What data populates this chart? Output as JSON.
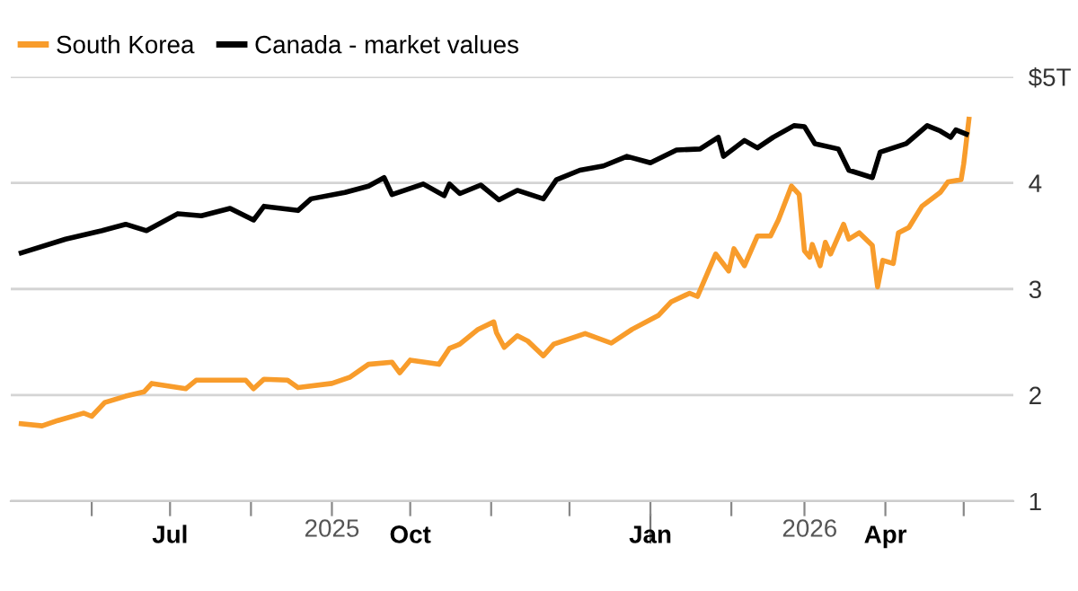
{
  "chart_data": {
    "type": "line",
    "series": [
      {
        "name": "South Korea",
        "color": "#f89c2b",
        "x": [
          "2025-05-05",
          "2025-05-13",
          "2025-05-19",
          "2025-05-29",
          "2025-06-01",
          "2025-06-06",
          "2025-06-14",
          "2025-06-21",
          "2025-06-24",
          "2025-07-07",
          "2025-07-11",
          "2025-07-30",
          "2025-08-02",
          "2025-08-06",
          "2025-08-15",
          "2025-08-19",
          "2025-09-01",
          "2025-09-08",
          "2025-09-15",
          "2025-09-24",
          "2025-09-27",
          "2025-10-01",
          "2025-10-12",
          "2025-10-16",
          "2025-10-20",
          "2025-10-27",
          "2025-11-02",
          "2025-11-03",
          "2025-11-06",
          "2025-11-11",
          "2025-11-15",
          "2025-11-21",
          "2025-11-25",
          "2025-12-07",
          "2025-12-17",
          "2025-12-25",
          "2026-01-04",
          "2026-01-09",
          "2026-01-16",
          "2026-01-19",
          "2026-01-26",
          "2026-01-31",
          "2026-02-02",
          "2026-02-06",
          "2026-02-11",
          "2026-02-16",
          "2026-02-19",
          "2026-02-24",
          "2026-02-27",
          "2026-03-01",
          "2026-03-03",
          "2026-03-04",
          "2026-03-07",
          "2026-03-09",
          "2026-03-11",
          "2026-03-16",
          "2026-03-18",
          "2026-03-22",
          "2026-03-27",
          "2026-03-29",
          "2026-03-31",
          "2026-04-04",
          "2026-04-06",
          "2026-04-10",
          "2026-04-15",
          "2026-04-22",
          "2026-04-25",
          "2026-04-30",
          "2026-05-01",
          "2026-05-03"
        ],
        "values": [
          1.73,
          1.71,
          1.76,
          1.83,
          1.8,
          1.93,
          1.99,
          2.03,
          2.11,
          2.06,
          2.14,
          2.14,
          2.06,
          2.15,
          2.14,
          2.07,
          2.11,
          2.17,
          2.29,
          2.31,
          2.21,
          2.33,
          2.29,
          2.44,
          2.48,
          2.62,
          2.69,
          2.59,
          2.45,
          2.56,
          2.51,
          2.37,
          2.48,
          2.58,
          2.49,
          2.62,
          2.75,
          2.88,
          2.96,
          2.93,
          3.33,
          3.17,
          3.38,
          3.22,
          3.5,
          3.5,
          3.65,
          3.97,
          3.89,
          3.36,
          3.3,
          3.42,
          3.22,
          3.44,
          3.33,
          3.61,
          3.47,
          3.53,
          3.41,
          3.02,
          3.27,
          3.24,
          3.53,
          3.58,
          3.78,
          3.91,
          4.01,
          4.03,
          4.18,
          4.6
        ]
      },
      {
        "name": "Canada - market values",
        "color": "#000000",
        "x": [
          "2025-05-05",
          "2025-05-22",
          "2025-06-05",
          "2025-06-14",
          "2025-06-22",
          "2025-07-04",
          "2025-07-13",
          "2025-07-24",
          "2025-08-02",
          "2025-08-06",
          "2025-08-19",
          "2025-08-24",
          "2025-09-06",
          "2025-09-15",
          "2025-09-21",
          "2025-09-24",
          "2025-10-06",
          "2025-10-14",
          "2025-10-16",
          "2025-10-20",
          "2025-10-28",
          "2025-11-04",
          "2025-11-11",
          "2025-11-21",
          "2025-11-26",
          "2025-12-05",
          "2025-12-14",
          "2025-12-23",
          "2026-01-01",
          "2026-01-11",
          "2026-01-20",
          "2026-01-27",
          "2026-01-29",
          "2026-02-06",
          "2026-02-11",
          "2026-02-17",
          "2026-02-25",
          "2026-03-01",
          "2026-03-05",
          "2026-03-14",
          "2026-03-18",
          "2026-03-27",
          "2026-03-30",
          "2026-04-09",
          "2026-04-17",
          "2026-04-22",
          "2026-04-26",
          "2026-04-28",
          "2026-05-02"
        ],
        "values": [
          3.34,
          3.47,
          3.55,
          3.61,
          3.55,
          3.71,
          3.69,
          3.76,
          3.65,
          3.78,
          3.74,
          3.85,
          3.91,
          3.97,
          4.05,
          3.89,
          3.99,
          3.88,
          3.99,
          3.9,
          3.98,
          3.84,
          3.93,
          3.85,
          4.03,
          4.12,
          4.16,
          4.25,
          4.19,
          4.31,
          4.32,
          4.43,
          4.25,
          4.4,
          4.33,
          4.43,
          4.54,
          4.53,
          4.37,
          4.32,
          4.12,
          4.05,
          4.29,
          4.37,
          4.54,
          4.49,
          4.43,
          4.5,
          4.46
        ]
      }
    ],
    "xlim": [
      "2025-05-01",
      "2026-05-20"
    ],
    "xticks": [
      {
        "value": "2025-06-01",
        "label": null
      },
      {
        "value": "2025-07-01",
        "label": "Jul"
      },
      {
        "value": "2025-08-01",
        "label": null
      },
      {
        "value": "2025-09-01",
        "label": null
      },
      {
        "value": "2025-10-01",
        "label": "Oct"
      },
      {
        "value": "2025-11-01",
        "label": null
      },
      {
        "value": "2025-12-01",
        "label": null
      },
      {
        "value": "2026-01-01",
        "label": "Jan"
      },
      {
        "value": "2026-02-01",
        "label": null
      },
      {
        "value": "2026-03-01",
        "label": null
      },
      {
        "value": "2026-04-01",
        "label": "Apr"
      },
      {
        "value": "2026-05-01",
        "label": null
      }
    ],
    "x2lim": [
      "2025-05-01",
      "2026-05-20"
    ],
    "x2ticks": [
      {
        "value": "2025-09-01",
        "label": "2025"
      },
      {
        "value": "2026-01-01",
        "label": null
      },
      {
        "value": "2026-03-03",
        "label": "2026"
      }
    ],
    "ylim": [
      1,
      5
    ],
    "yticks": [
      1,
      2,
      3,
      4,
      {
        "value": 5,
        "label": "$5T"
      }
    ],
    "grid": "y",
    "legend": "top left",
    "marker": "none",
    "line_style": "solid"
  }
}
